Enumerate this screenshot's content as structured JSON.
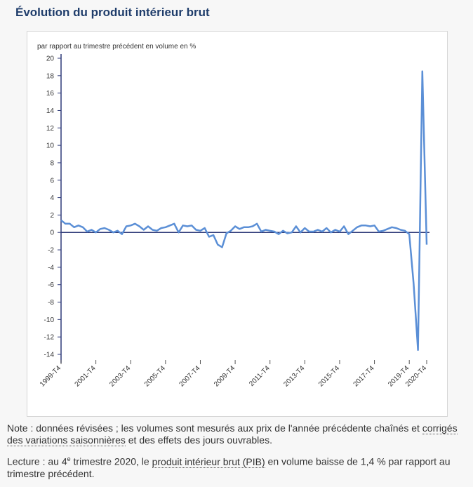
{
  "page": {
    "title": "Évolution du produit intérieur brut"
  },
  "notes": {
    "note_prefix": "Note : données révisées ; les volumes sont mesurés aux prix de l'année précédente chaînés et ",
    "note_link": "corrigés des variations saisonnières",
    "note_suffix": " et des effets des jours ouvrables.",
    "reading_prefix": "Lecture : au 4",
    "reading_sup": "e",
    "reading_mid": " trimestre 2020, le ",
    "reading_link": "produit intérieur brut (PIB)",
    "reading_suffix": " en volume baisse de 1,4 % par rapport au trimestre précédent."
  },
  "chart_data": {
    "type": "line",
    "title": "",
    "ylabel": "par rapport au trimestre précédent en volume en %",
    "xlabel": "",
    "ylim": [
      -15,
      20
    ],
    "y_ticks": [
      20,
      18,
      16,
      14,
      12,
      10,
      8,
      6,
      4,
      2,
      0,
      -2,
      -4,
      -6,
      -8,
      -10,
      -12,
      -14
    ],
    "x_tick_labels": [
      "1999-T4",
      "2001-T4",
      "2003-T4",
      "2005-T4",
      "2007-T4",
      "2009-T4",
      "2011-T4",
      "2013-T4",
      "2015-T4",
      "2017-T4",
      "2019-T4",
      "2020-T4"
    ],
    "x_tick_index": [
      0,
      8,
      16,
      24,
      32,
      40,
      48,
      56,
      64,
      72,
      80,
      84
    ],
    "line_color": "#5b8fd6",
    "axis_color": "#2e3a78",
    "grid": false,
    "x": [
      "1999-T4",
      "2000-T1",
      "2000-T2",
      "2000-T3",
      "2000-T4",
      "2001-T1",
      "2001-T2",
      "2001-T3",
      "2001-T4",
      "2002-T1",
      "2002-T2",
      "2002-T3",
      "2002-T4",
      "2003-T1",
      "2003-T2",
      "2003-T3",
      "2003-T4",
      "2004-T1",
      "2004-T2",
      "2004-T3",
      "2004-T4",
      "2005-T1",
      "2005-T2",
      "2005-T3",
      "2005-T4",
      "2006-T1",
      "2006-T2",
      "2006-T3",
      "2006-T4",
      "2007-T1",
      "2007-T2",
      "2007-T3",
      "2007-T4",
      "2008-T1",
      "2008-T2",
      "2008-T3",
      "2008-T4",
      "2009-T1",
      "2009-T2",
      "2009-T3",
      "2009-T4",
      "2010-T1",
      "2010-T2",
      "2010-T3",
      "2010-T4",
      "2011-T1",
      "2011-T2",
      "2011-T3",
      "2011-T4",
      "2012-T1",
      "2012-T2",
      "2012-T3",
      "2012-T4",
      "2013-T1",
      "2013-T2",
      "2013-T3",
      "2013-T4",
      "2014-T1",
      "2014-T2",
      "2014-T3",
      "2014-T4",
      "2015-T1",
      "2015-T2",
      "2015-T3",
      "2015-T4",
      "2016-T1",
      "2016-T2",
      "2016-T3",
      "2016-T4",
      "2017-T1",
      "2017-T2",
      "2017-T3",
      "2017-T4",
      "2018-T1",
      "2018-T2",
      "2018-T3",
      "2018-T4",
      "2019-T1",
      "2019-T2",
      "2019-T3",
      "2019-T4",
      "2020-T1",
      "2020-T2",
      "2020-T3",
      "2020-T4"
    ],
    "values": [
      1.4,
      1.0,
      1.0,
      0.6,
      0.8,
      0.6,
      0.1,
      0.3,
      0.0,
      0.4,
      0.5,
      0.3,
      0.0,
      0.2,
      -0.2,
      0.7,
      0.8,
      1.0,
      0.7,
      0.3,
      0.7,
      0.3,
      0.2,
      0.5,
      0.6,
      0.8,
      1.0,
      0.0,
      0.8,
      0.7,
      0.8,
      0.3,
      0.2,
      0.5,
      -0.5,
      -0.3,
      -1.4,
      -1.7,
      -0.1,
      0.2,
      0.7,
      0.4,
      0.6,
      0.6,
      0.7,
      1.0,
      0.1,
      0.3,
      0.2,
      0.1,
      -0.2,
      0.2,
      -0.1,
      0.0,
      0.7,
      0.0,
      0.5,
      0.1,
      0.1,
      0.3,
      0.1,
      0.5,
      0.0,
      0.3,
      0.1,
      0.7,
      -0.2,
      0.2,
      0.6,
      0.8,
      0.8,
      0.7,
      0.8,
      0.1,
      0.2,
      0.4,
      0.6,
      0.5,
      0.3,
      0.2,
      -0.2,
      -5.9,
      -13.5,
      18.5,
      -1.4
    ]
  }
}
